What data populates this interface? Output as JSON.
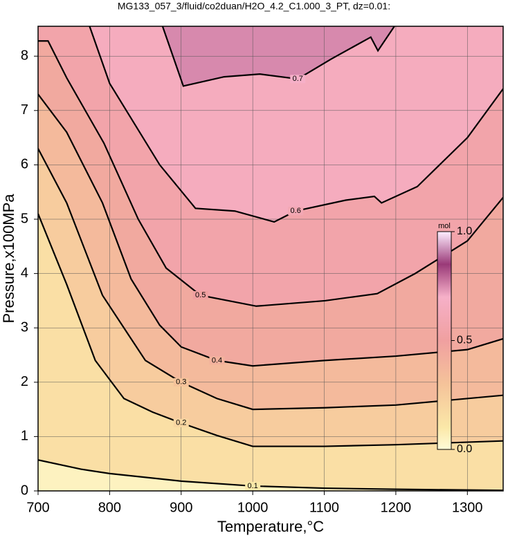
{
  "chart_data": {
    "type": "contour",
    "title": "MG133_057_3/fluid/co2duan/H2O_4.2_C1.000_3_PT, dz=0.01:",
    "x_label": "Temperature,°C",
    "y_label": "Pressure,x100MPa",
    "xlim": [
      700,
      1350
    ],
    "ylim": [
      0,
      8.55
    ],
    "xticks": [
      700,
      800,
      900,
      1000,
      1100,
      1200,
      1300
    ],
    "yticks": [
      0,
      1,
      2,
      3,
      4,
      5,
      6,
      7,
      8
    ],
    "grid": true,
    "contours": [
      {
        "level": 0.1,
        "x": [
          700,
          760,
          800,
          900,
          1000,
          1100,
          1200,
          1350
        ],
        "y": [
          0.57,
          0.4,
          0.32,
          0.18,
          0.09,
          0.05,
          0.03,
          0.01
        ]
      },
      {
        "level": 0.2,
        "x": [
          700,
          740,
          780,
          820,
          860,
          900,
          950,
          1000,
          1100,
          1200,
          1350
        ],
        "y": [
          5.1,
          3.8,
          2.4,
          1.7,
          1.45,
          1.25,
          1.02,
          0.82,
          0.82,
          0.85,
          0.92
        ]
      },
      {
        "level": 0.3,
        "x": [
          700,
          740,
          790,
          820,
          850,
          900,
          950,
          1000,
          1100,
          1200,
          1350
        ],
        "y": [
          6.3,
          5.3,
          3.6,
          3.0,
          2.4,
          2.0,
          1.7,
          1.5,
          1.53,
          1.58,
          1.76
        ]
      },
      {
        "level": 0.4,
        "x": [
          700,
          740,
          790,
          830,
          870,
          900,
          950,
          1000,
          1100,
          1200,
          1300,
          1350
        ],
        "y": [
          7.3,
          6.6,
          5.3,
          3.9,
          3.05,
          2.65,
          2.4,
          2.3,
          2.4,
          2.48,
          2.6,
          2.8
        ]
      },
      {
        "level": 0.5,
        "x": [
          700,
          714,
          740,
          792,
          840,
          879,
          927,
          1005,
          1101,
          1174,
          1227,
          1300,
          1350
        ],
        "y": [
          8.28,
          8.28,
          7.6,
          6.4,
          5.0,
          4.1,
          3.6,
          3.4,
          3.5,
          3.63,
          4.0,
          4.6,
          5.4
        ]
      },
      {
        "level": 0.6,
        "x": [
          772,
          800,
          870,
          920,
          975,
          1030,
          1060,
          1130,
          1170,
          1180,
          1230,
          1300,
          1350
        ],
        "y": [
          8.55,
          7.5,
          6.0,
          5.2,
          5.15,
          4.95,
          5.15,
          5.35,
          5.42,
          5.3,
          5.6,
          6.5,
          7.4
        ]
      },
      {
        "level": 0.7,
        "x": [
          874,
          903,
          960,
          1010,
          1063,
          1110,
          1165,
          1175,
          1198
        ],
        "y": [
          8.55,
          7.45,
          7.62,
          7.67,
          7.58,
          7.95,
          8.35,
          8.1,
          8.55
        ]
      }
    ],
    "colorbar": {
      "title": "mol",
      "range": [
        0,
        1
      ],
      "ticks": [
        {
          "value": 0,
          "label": "0.0"
        },
        {
          "value": 0.5,
          "label": "0.5"
        },
        {
          "value": 1,
          "label": "1.0"
        }
      ],
      "colormap": [
        {
          "value": 0,
          "color": "#fffcd8"
        },
        {
          "value": 0.1,
          "color": "#fbe8a8"
        },
        {
          "value": 0.3,
          "color": "#f5c39a"
        },
        {
          "value": 0.5,
          "color": "#f0a0a0"
        },
        {
          "value": 0.7,
          "color": "#f6b0c8"
        },
        {
          "value": 0.85,
          "color": "#9a3a78"
        },
        {
          "value": 1,
          "color": "#ffeeff"
        }
      ]
    }
  }
}
